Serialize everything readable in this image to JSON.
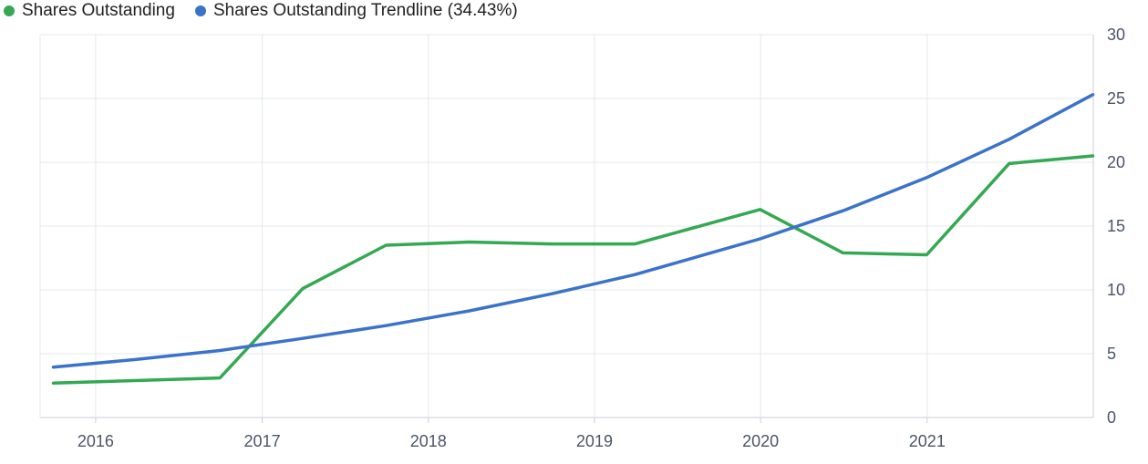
{
  "legend": [
    {
      "label": "Shares Outstanding",
      "color": "#34a853"
    },
    {
      "label": "Shares Outstanding Trendline (34.43%)",
      "color": "#3b73c9"
    }
  ],
  "chart_data": {
    "type": "line",
    "xlabel": "",
    "ylabel": "",
    "ylim": [
      0,
      30
    ],
    "y_ticks": [
      0,
      5,
      10,
      15,
      20,
      25,
      30
    ],
    "y_axis_position": "right",
    "x_ticks": [
      "2016",
      "2017",
      "2018",
      "2019",
      "2020",
      "2021"
    ],
    "grid": true,
    "legend_position": "top-left",
    "series": [
      {
        "name": "Shares Outstanding",
        "color": "#34a853",
        "x": [
          "2015-09-30",
          "2016-09-30",
          "2017-03-31",
          "2017-09-30",
          "2018-03-31",
          "2018-09-30",
          "2019-03-31",
          "2019-12-31",
          "2020-06-30",
          "2020-12-31",
          "2021-06-30",
          "2021-12-31"
        ],
        "values": [
          2.7,
          3.1,
          10.1,
          13.5,
          13.75,
          13.6,
          13.6,
          16.3,
          12.9,
          12.75,
          19.9,
          20.5
        ]
      },
      {
        "name": "Shares Outstanding Trendline (34.43%)",
        "color": "#3b73c9",
        "x": [
          "2015-09-30",
          "2016-03-31",
          "2016-09-30",
          "2017-03-31",
          "2017-09-30",
          "2018-03-31",
          "2018-09-30",
          "2019-03-31",
          "2019-12-31",
          "2020-06-30",
          "2020-12-31",
          "2021-06-30",
          "2021-12-31"
        ],
        "values": [
          3.95,
          4.55,
          5.25,
          6.2,
          7.2,
          8.35,
          9.7,
          11.2,
          14.0,
          16.2,
          18.8,
          21.8,
          25.3
        ]
      }
    ]
  }
}
